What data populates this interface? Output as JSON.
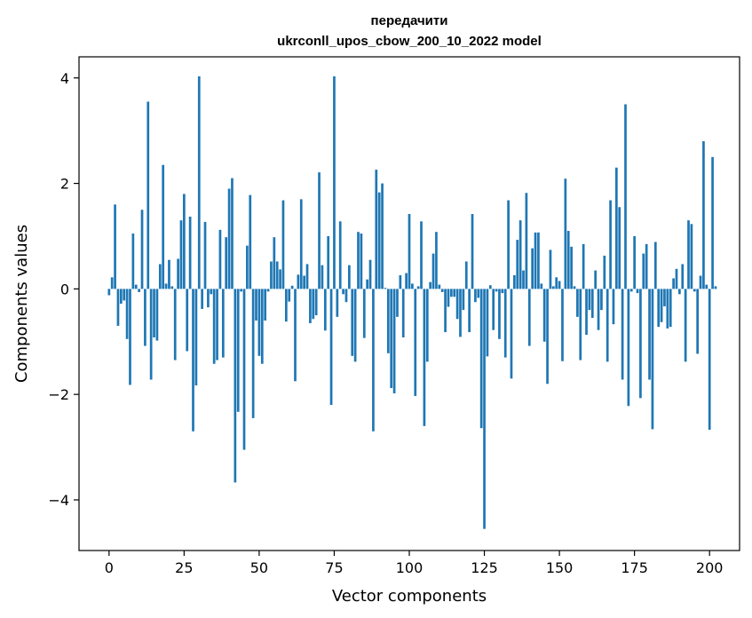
{
  "chart_data": {
    "type": "bar",
    "title": "передачити",
    "subtitle": "ukrconll_upos_cbow_200_10_2022 model",
    "xlabel": "Vector components",
    "ylabel": "Components values",
    "xlim": [
      -10,
      210
    ],
    "ylim": [
      -4.96,
      4.4
    ],
    "xticks": [
      0,
      25,
      50,
      75,
      100,
      125,
      150,
      175,
      200
    ],
    "yticks": [
      -4,
      -2,
      0,
      2,
      4
    ],
    "xtick_labels": [
      "0",
      "25",
      "50",
      "75",
      "100",
      "125",
      "150",
      "175",
      "200"
    ],
    "ytick_labels": [
      "−4",
      "−2",
      "0",
      "2",
      "4"
    ],
    "bar_color": "#1f77b4",
    "grid": false,
    "values": [
      -0.12,
      0.22,
      1.6,
      -0.7,
      -0.28,
      -0.22,
      -0.95,
      -1.82,
      1.05,
      0.08,
      -0.06,
      1.5,
      -1.08,
      3.55,
      -1.72,
      -0.92,
      -0.98,
      0.47,
      2.35,
      0.1,
      0.55,
      0.05,
      -1.35,
      0.57,
      1.3,
      1.8,
      -1.18,
      1.37,
      -2.7,
      -1.83,
      4.03,
      -0.38,
      1.27,
      -0.35,
      -0.1,
      -1.42,
      -1.35,
      1.12,
      -1.3,
      0.98,
      1.9,
      2.1,
      -3.67,
      -2.33,
      -0.05,
      -3.05,
      0.82,
      1.78,
      -2.45,
      -0.6,
      -1.27,
      -1.42,
      -0.6,
      -0.05,
      0.52,
      0.98,
      0.52,
      0.37,
      1.68,
      -0.62,
      -0.24,
      0.06,
      -1.75,
      0.27,
      1.7,
      0.25,
      0.47,
      -0.65,
      -0.57,
      -0.5,
      2.21,
      0.45,
      -0.79,
      1.0,
      -2.2,
      4.03,
      -0.53,
      1.28,
      -0.1,
      -0.25,
      0.45,
      -1.27,
      -1.38,
      1.08,
      1.05,
      -0.93,
      0.18,
      0.55,
      -2.7,
      2.26,
      1.83,
      2.0,
      0.02,
      -1.22,
      -1.88,
      -1.98,
      -0.53,
      0.26,
      -0.92,
      0.3,
      1.42,
      0.1,
      -2.03,
      0.05,
      1.28,
      -2.6,
      -1.38,
      0.13,
      0.67,
      1.08,
      0.08,
      -0.06,
      -0.82,
      -0.34,
      -0.15,
      -0.15,
      -0.57,
      -0.91,
      -0.4,
      0.52,
      -0.82,
      1.42,
      -0.25,
      -0.17,
      -2.64,
      -4.55,
      -1.28,
      0.07,
      -0.78,
      -0.05,
      -0.95,
      -0.08,
      -1.3,
      1.68,
      -1.7,
      0.26,
      0.93,
      1.3,
      0.35,
      1.82,
      -1.08,
      0.77,
      1.07,
      1.07,
      0.1,
      -1.0,
      -1.8,
      0.74,
      0.05,
      0.22,
      0.15,
      -1.37,
      2.09,
      1.1,
      0.8,
      0.05,
      -0.53,
      -1.35,
      0.85,
      -0.87,
      -0.4,
      -0.55,
      0.35,
      -0.78,
      -0.4,
      0.63,
      -1.38,
      1.68,
      -0.67,
      2.3,
      1.55,
      -1.72,
      3.5,
      -2.22,
      -0.05,
      1.0,
      -0.08,
      -2.07,
      0.67,
      0.85,
      -1.72,
      -2.66,
      0.89,
      -0.72,
      -0.63,
      -0.33,
      -0.75,
      -0.72,
      0.2,
      0.38,
      -0.1,
      0.47,
      -1.38,
      1.3,
      1.23,
      -0.05,
      -1.23,
      0.25,
      2.8,
      0.08,
      -2.67,
      2.5,
      0.05
    ]
  }
}
